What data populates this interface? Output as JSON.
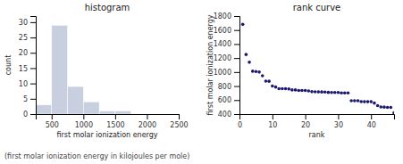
{
  "chart_data": [
    {
      "type": "histogram",
      "title": "histogram",
      "xlabel": "first molar ionization energy",
      "ylabel": "count",
      "bins": [
        250,
        500,
        750,
        1000,
        1250,
        1500,
        1750,
        2000,
        2250,
        2500
      ],
      "values": [
        3,
        29,
        9,
        4,
        1,
        1,
        0,
        0,
        0
      ],
      "color": "#c8d0e0",
      "xlim": [
        250,
        2500
      ],
      "xticks": [
        500,
        1000,
        1500,
        2000,
        2500
      ],
      "ylim": [
        0,
        32
      ],
      "yticks": [
        0,
        5,
        10,
        15,
        20,
        25,
        30
      ]
    },
    {
      "type": "scatter",
      "title": "rank curve",
      "xlabel": "rank",
      "ylabel": "first molar ionization energy",
      "x": [
        1,
        2,
        3,
        4,
        5,
        6,
        7,
        8,
        9,
        10,
        11,
        12,
        13,
        14,
        15,
        16,
        17,
        18,
        19,
        20,
        21,
        22,
        23,
        24,
        25,
        26,
        27,
        28,
        29,
        30,
        31,
        32,
        33,
        34,
        35,
        36,
        37,
        38,
        39,
        40,
        41,
        42,
        43,
        44,
        45,
        46,
        47
      ],
      "values": [
        1681,
        1251,
        1140,
        1012,
        1008,
        1000,
        947,
        870,
        869,
        800,
        786,
        762,
        762,
        762,
        758,
        745,
        745,
        738,
        737,
        737,
        731,
        720,
        719,
        717,
        716,
        715,
        710,
        709,
        709,
        708,
        703,
        703,
        703,
        590,
        590,
        590,
        578,
        577,
        577,
        577,
        557,
        520,
        502,
        500,
        496,
        496,
        419
      ],
      "color": "#191970",
      "xlim": [
        0,
        47
      ],
      "xticks": [
        0,
        10,
        20,
        30,
        40
      ],
      "ylim": [
        400,
        1800
      ],
      "yticks": [
        400,
        600,
        800,
        1000,
        1200,
        1400,
        1600,
        1800
      ]
    }
  ],
  "caption": "(first molar ionization energy in kilojoules per mole)"
}
